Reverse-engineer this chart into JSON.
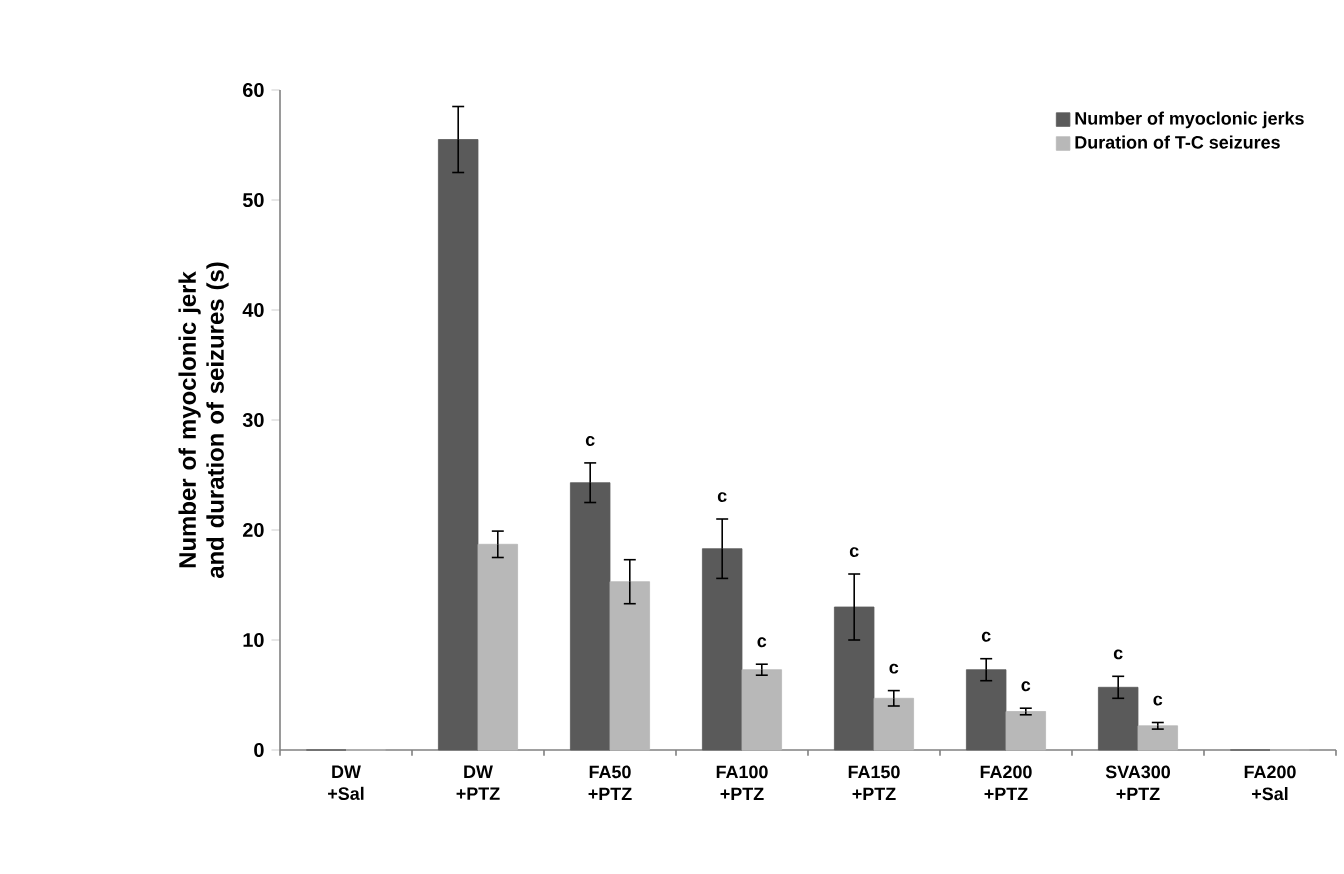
{
  "chart_data": {
    "type": "bar",
    "ylabel": "Number of myoclonic jerk and duration of seizures (s)",
    "categories": [
      "DW +Sal",
      "DW +PTZ",
      "FA50 +PTZ",
      "FA100 +PTZ",
      "FA150 +PTZ",
      "FA200 +PTZ",
      "SVA300 +PTZ",
      "FA200 +Sal"
    ],
    "series": [
      {
        "name": "Number of myoclonic jerks",
        "color": "#5a5a5a",
        "values": [
          0,
          55.5,
          24.3,
          18.3,
          13,
          7.3,
          5.7,
          0
        ],
        "errors": [
          null,
          3,
          1.8,
          2.7,
          3,
          1,
          1,
          null
        ]
      },
      {
        "name": "Duration of T-C seizures",
        "color": "#b8b8b8",
        "values": [
          0,
          18.7,
          15.3,
          7.3,
          4.7,
          3.5,
          2.2,
          0
        ],
        "errors": [
          null,
          1.2,
          2,
          0.5,
          0.7,
          0.3,
          0.3,
          null
        ]
      }
    ],
    "ylim": [
      0,
      60
    ],
    "yticks": [
      0,
      10,
      20,
      30,
      40,
      50,
      60
    ],
    "grid": false,
    "legend": "top right",
    "annotations": [
      {
        "text": "c",
        "x": "FA50 +PTZ",
        "y": 24.3
      },
      {
        "text": "c",
        "x": "FA100 +PTZ",
        "y": 18.3
      },
      {
        "text": "c",
        "x": "FA100 +PTZ",
        "y": 7.8
      },
      {
        "text": "c",
        "x": "FA150 +PTZ",
        "y": 13
      },
      {
        "text": "c",
        "x": "FA150 +PTZ",
        "y": 5.4
      },
      {
        "text": "c",
        "x": "FA200 +PTZ",
        "y": 7.3
      },
      {
        "text": "c",
        "x": "FA200 +PTZ",
        "y": 3.8
      },
      {
        "text": "c",
        "x": "SVA300 +PTZ",
        "y": 5.7
      },
      {
        "text": "c",
        "x": "SVA300 +PTZ",
        "y": 2.5
      }
    ]
  }
}
